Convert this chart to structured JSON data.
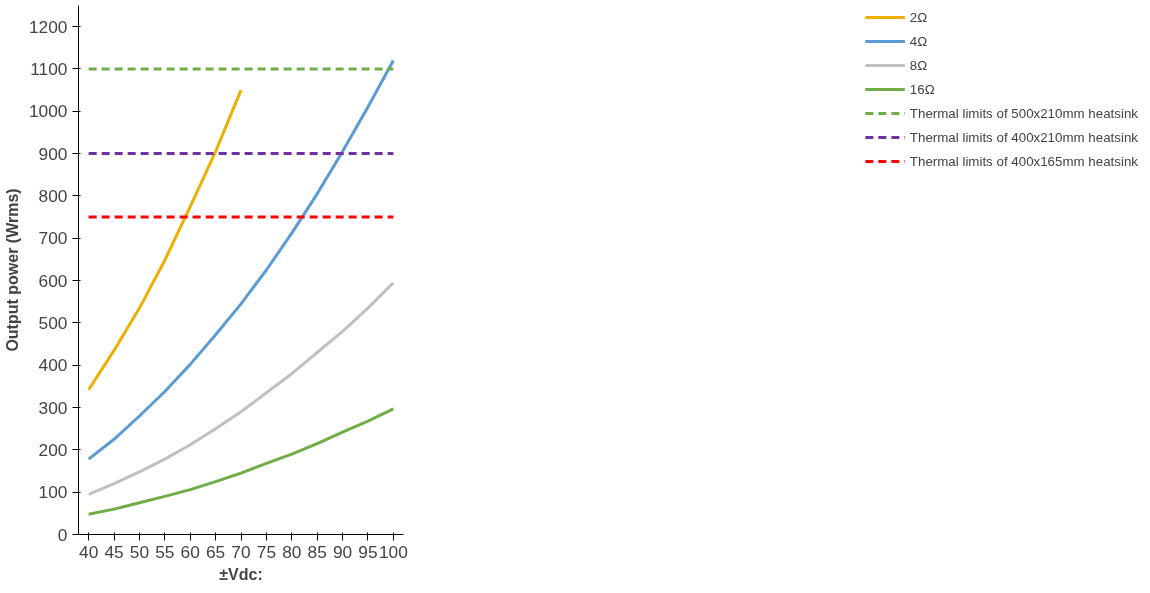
{
  "chart_data": {
    "type": "line",
    "xlabel": "±Vdc:",
    "ylabel": "Output power (Wrms)",
    "xlim": [
      38,
      102
    ],
    "xticks": [
      40,
      45,
      50,
      55,
      60,
      65,
      70,
      75,
      80,
      85,
      90,
      95,
      100
    ],
    "ylim": [
      0,
      1250
    ],
    "yticks": [
      0,
      100,
      200,
      300,
      400,
      500,
      600,
      700,
      800,
      900,
      1000,
      1100,
      1200
    ],
    "grid": false,
    "legend": "right",
    "line_style": "solid",
    "marker": "none",
    "series": [
      {
        "name": "2Ω",
        "color": "#efaf00",
        "x": [
          40,
          45,
          50,
          55,
          60,
          65,
          70
        ],
        "values": [
          342,
          435,
          535,
          648,
          775,
          905,
          1050
        ]
      },
      {
        "name": "4Ω",
        "color": "#5b9bd5",
        "x": [
          40,
          45,
          50,
          55,
          60,
          65,
          70,
          75,
          80,
          85,
          90,
          95,
          100
        ],
        "values": [
          178,
          225,
          280,
          338,
          402,
          472,
          545,
          625,
          712,
          805,
          905,
          1010,
          1120
        ]
      },
      {
        "name": "8Ω",
        "color": "#c0c0c0",
        "x": [
          40,
          45,
          50,
          55,
          60,
          65,
          70,
          75,
          80,
          85,
          90,
          95,
          100
        ],
        "values": [
          95,
          120,
          148,
          178,
          212,
          250,
          290,
          335,
          380,
          430,
          480,
          535,
          595
        ]
      },
      {
        "name": "16Ω",
        "color": "#70ad47",
        "x": [
          40,
          45,
          50,
          55,
          60,
          65,
          70,
          75,
          80,
          85,
          90,
          95,
          100
        ],
        "values": [
          48,
          60,
          75,
          90,
          106,
          125,
          145,
          168,
          190,
          215,
          242,
          268,
          297
        ]
      },
      {
        "name": "Thermal limits of 500x210mm heatsink",
        "color": "#70ad47",
        "line_style": "dashed",
        "x": [
          40,
          100
        ],
        "values": [
          1100,
          1100
        ]
      },
      {
        "name": "Thermal limits of 400x210mm heatsink",
        "color": "#7030a0",
        "line_style": "dashed",
        "x": [
          40,
          100
        ],
        "values": [
          900,
          900
        ]
      },
      {
        "name": "Thermal limits of 400x165mm heatsink",
        "color": "#ff0000",
        "line_style": "dashed",
        "x": [
          40,
          100
        ],
        "values": [
          750,
          750
        ]
      }
    ]
  }
}
